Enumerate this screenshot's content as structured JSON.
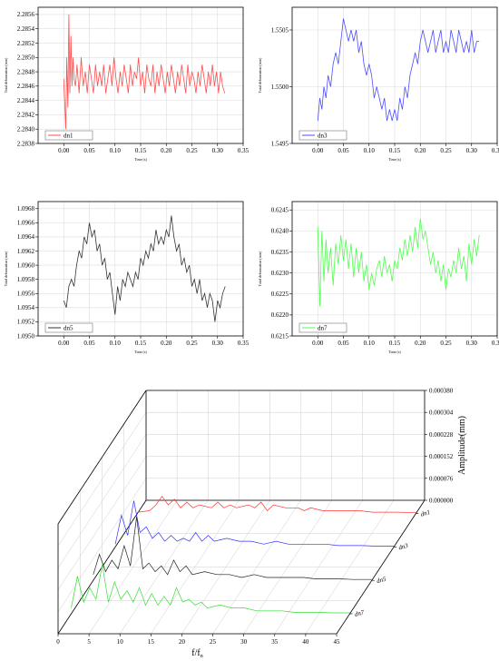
{
  "chart_data": [
    {
      "type": "line",
      "xlabel": "Time (s)",
      "ylabel": "Total deformation (mm)",
      "xticks": [
        "0.00",
        "0.05",
        "0.10",
        "0.15",
        "0.20",
        "0.25",
        "0.30",
        "0.35"
      ],
      "xlim": [
        -0.05,
        0.35
      ],
      "yticks": [
        "2.2838",
        "2.2840",
        "2.2842",
        "2.2844",
        "2.2846",
        "2.2848",
        "2.2850",
        "2.2852",
        "2.2854",
        "2.2856"
      ],
      "ylim": [
        2.2838,
        2.2857
      ],
      "grid": true,
      "legend_position": "bottom-left",
      "series": [
        {
          "name": "dn1",
          "color": "#ff4d4d",
          "x": [
            0.0,
            0.004,
            0.006,
            0.008,
            0.01,
            0.012,
            0.014,
            0.016,
            0.018,
            0.02,
            0.023,
            0.026,
            0.03,
            0.034,
            0.038,
            0.042,
            0.046,
            0.05,
            0.054,
            0.058,
            0.062,
            0.066,
            0.07,
            0.074,
            0.078,
            0.082,
            0.086,
            0.09,
            0.094,
            0.098,
            0.102,
            0.106,
            0.11,
            0.114,
            0.118,
            0.122,
            0.126,
            0.13,
            0.134,
            0.138,
            0.142,
            0.146,
            0.15,
            0.154,
            0.158,
            0.162,
            0.166,
            0.17,
            0.174,
            0.178,
            0.182,
            0.186,
            0.19,
            0.194,
            0.198,
            0.202,
            0.206,
            0.21,
            0.214,
            0.218,
            0.222,
            0.226,
            0.23,
            0.234,
            0.238,
            0.242,
            0.246,
            0.25,
            0.254,
            0.258,
            0.262,
            0.266,
            0.27,
            0.274,
            0.278,
            0.282,
            0.286,
            0.29,
            0.294,
            0.298,
            0.302,
            0.306,
            0.31,
            0.314
          ],
          "y": [
            2.2847,
            2.284,
            2.285,
            2.2843,
            2.2856,
            2.2845,
            2.2853,
            2.2846,
            2.285,
            2.2847,
            2.2846,
            2.2849,
            2.2845,
            2.285,
            2.2846,
            2.2848,
            2.2845,
            2.2849,
            2.2847,
            2.2845,
            2.2849,
            2.2846,
            2.2848,
            2.2846,
            2.2849,
            2.2845,
            2.2847,
            2.2849,
            2.2846,
            2.285,
            2.2847,
            2.2845,
            2.2848,
            2.2846,
            2.2849,
            2.2847,
            2.2845,
            2.2849,
            2.2846,
            2.2848,
            2.2847,
            2.285,
            2.2846,
            2.2848,
            2.2845,
            2.2849,
            2.2847,
            2.2846,
            2.2849,
            2.2845,
            2.2848,
            2.2846,
            2.2849,
            2.2847,
            2.2845,
            2.2848,
            2.2846,
            2.2849,
            2.2847,
            2.2845,
            2.2848,
            2.2846,
            2.2849,
            2.2847,
            2.2845,
            2.2849,
            2.2846,
            2.2848,
            2.2847,
            2.2845,
            2.2848,
            2.2846,
            2.2849,
            2.2847,
            2.2845,
            2.2848,
            2.2846,
            2.2849,
            2.2846,
            2.2848,
            2.2845,
            2.2848,
            2.2846,
            2.2845
          ]
        }
      ]
    },
    {
      "type": "line",
      "xlabel": "Time (s)",
      "ylabel": "Total deformation (mm)",
      "xticks": [
        "0.00",
        "0.05",
        "0.10",
        "0.15",
        "0.20",
        "0.25",
        "0.30",
        "0.35"
      ],
      "xlim": [
        -0.05,
        0.35
      ],
      "yticks": [
        "1.5495",
        "1.5500",
        "1.5505"
      ],
      "ylim": [
        1.5495,
        1.5507
      ],
      "grid": true,
      "legend_position": "bottom-left",
      "series": [
        {
          "name": "dn3",
          "color": "#4d4dff",
          "x": [
            0.0,
            0.004,
            0.008,
            0.012,
            0.016,
            0.02,
            0.025,
            0.03,
            0.035,
            0.04,
            0.045,
            0.05,
            0.055,
            0.06,
            0.065,
            0.07,
            0.075,
            0.08,
            0.085,
            0.09,
            0.095,
            0.1,
            0.105,
            0.11,
            0.115,
            0.12,
            0.125,
            0.13,
            0.135,
            0.14,
            0.145,
            0.15,
            0.155,
            0.16,
            0.165,
            0.17,
            0.175,
            0.18,
            0.185,
            0.19,
            0.195,
            0.2,
            0.205,
            0.21,
            0.215,
            0.22,
            0.225,
            0.23,
            0.235,
            0.24,
            0.245,
            0.25,
            0.255,
            0.26,
            0.265,
            0.27,
            0.275,
            0.28,
            0.285,
            0.29,
            0.295,
            0.3,
            0.305,
            0.31,
            0.315
          ],
          "y": [
            1.5497,
            1.5499,
            1.5498,
            1.55,
            1.5499,
            1.5501,
            1.55,
            1.5502,
            1.5503,
            1.5502,
            1.5504,
            1.5506,
            1.5505,
            1.5504,
            1.5505,
            1.5504,
            1.5505,
            1.5503,
            1.5504,
            1.5502,
            1.5501,
            1.5502,
            1.5501,
            1.5499,
            1.55,
            1.5499,
            1.5498,
            1.5499,
            1.5497,
            1.5498,
            1.5497,
            1.5498,
            1.5497,
            1.5499,
            1.5498,
            1.55,
            1.5499,
            1.5501,
            1.5502,
            1.5503,
            1.5502,
            1.5504,
            1.5505,
            1.5504,
            1.5503,
            1.5504,
            1.5505,
            1.5503,
            1.5504,
            1.5505,
            1.5503,
            1.5504,
            1.5503,
            1.5505,
            1.5504,
            1.5503,
            1.5505,
            1.5504,
            1.5503,
            1.5504,
            1.5503,
            1.5505,
            1.5503,
            1.5504,
            1.5504
          ]
        }
      ]
    },
    {
      "type": "line",
      "xlabel": "Time (s)",
      "ylabel": "Total deformation (mm)",
      "xticks": [
        "0.00",
        "0.05",
        "0.10",
        "0.15",
        "0.20",
        "0.25",
        "0.30",
        "0.35"
      ],
      "xlim": [
        -0.05,
        0.35
      ],
      "yticks": [
        "1.0950",
        "1.0952",
        "1.0954",
        "1.0956",
        "1.0958",
        "1.0960",
        "1.0962",
        "1.0964",
        "1.0966",
        "1.0968"
      ],
      "ylim": [
        1.095,
        1.0969
      ],
      "grid": true,
      "legend_position": "bottom-left",
      "series": [
        {
          "name": "dn5",
          "color": "#333333",
          "x": [
            0.0,
            0.005,
            0.01,
            0.015,
            0.02,
            0.025,
            0.03,
            0.035,
            0.04,
            0.045,
            0.05,
            0.055,
            0.06,
            0.065,
            0.07,
            0.075,
            0.08,
            0.085,
            0.09,
            0.095,
            0.1,
            0.105,
            0.11,
            0.115,
            0.12,
            0.125,
            0.13,
            0.135,
            0.14,
            0.145,
            0.15,
            0.155,
            0.16,
            0.165,
            0.17,
            0.175,
            0.18,
            0.185,
            0.19,
            0.195,
            0.2,
            0.205,
            0.21,
            0.215,
            0.22,
            0.225,
            0.23,
            0.235,
            0.24,
            0.245,
            0.25,
            0.255,
            0.26,
            0.265,
            0.27,
            0.275,
            0.28,
            0.285,
            0.29,
            0.295,
            0.3,
            0.305,
            0.31,
            0.315
          ],
          "y": [
            1.0955,
            1.0954,
            1.0957,
            1.0958,
            1.0957,
            1.096,
            1.0962,
            1.0961,
            1.0964,
            1.0963,
            1.0966,
            1.0964,
            1.0965,
            1.0962,
            1.0963,
            1.096,
            1.0961,
            1.0958,
            1.0959,
            1.0956,
            1.0953,
            1.0957,
            1.0955,
            1.0958,
            1.0957,
            1.0959,
            1.0958,
            1.0957,
            1.0959,
            1.0958,
            1.0961,
            1.096,
            1.0962,
            1.0961,
            1.0963,
            1.0962,
            1.0965,
            1.0963,
            1.0964,
            1.0963,
            1.0965,
            1.0964,
            1.0967,
            1.0964,
            1.0962,
            1.0963,
            1.096,
            1.0961,
            1.0959,
            1.096,
            1.0957,
            1.0958,
            1.0956,
            1.0958,
            1.0955,
            1.0956,
            1.0954,
            1.0956,
            1.0955,
            1.0952,
            1.0955,
            1.0954,
            1.0956,
            1.0957
          ]
        }
      ]
    },
    {
      "type": "line",
      "xlabel": "Time (s)",
      "ylabel": "Total deformation (mm)",
      "xticks": [
        "0.00",
        "0.05",
        "0.10",
        "0.15",
        "0.20",
        "0.25",
        "0.30",
        "0.35"
      ],
      "xlim": [
        -0.05,
        0.35
      ],
      "yticks": [
        "0.6215",
        "0.6220",
        "0.6225",
        "0.6230",
        "0.6235",
        "0.6240",
        "0.6245"
      ],
      "ylim": [
        0.6215,
        0.6247
      ],
      "grid": true,
      "legend_position": "bottom-left",
      "series": [
        {
          "name": "dn7",
          "color": "#4dff4d",
          "x": [
            0.0,
            0.004,
            0.008,
            0.012,
            0.016,
            0.02,
            0.025,
            0.03,
            0.035,
            0.04,
            0.045,
            0.05,
            0.055,
            0.06,
            0.065,
            0.07,
            0.075,
            0.08,
            0.085,
            0.09,
            0.095,
            0.1,
            0.105,
            0.11,
            0.115,
            0.12,
            0.125,
            0.13,
            0.135,
            0.14,
            0.145,
            0.15,
            0.155,
            0.16,
            0.165,
            0.17,
            0.175,
            0.18,
            0.185,
            0.19,
            0.195,
            0.2,
            0.205,
            0.21,
            0.215,
            0.22,
            0.225,
            0.23,
            0.235,
            0.24,
            0.245,
            0.25,
            0.255,
            0.26,
            0.265,
            0.27,
            0.275,
            0.28,
            0.285,
            0.29,
            0.295,
            0.3,
            0.305,
            0.31,
            0.315
          ],
          "y": [
            0.6241,
            0.6222,
            0.624,
            0.6228,
            0.6238,
            0.623,
            0.6236,
            0.6227,
            0.6237,
            0.6232,
            0.6239,
            0.6233,
            0.6238,
            0.6231,
            0.6237,
            0.6229,
            0.6236,
            0.623,
            0.6235,
            0.6228,
            0.6232,
            0.6226,
            0.623,
            0.6227,
            0.6231,
            0.6233,
            0.6229,
            0.6234,
            0.623,
            0.6232,
            0.6228,
            0.6233,
            0.6231,
            0.6236,
            0.6233,
            0.6238,
            0.6234,
            0.6239,
            0.6235,
            0.6241,
            0.6236,
            0.6243,
            0.6238,
            0.624,
            0.6236,
            0.6232,
            0.6235,
            0.623,
            0.6233,
            0.6228,
            0.6232,
            0.6226,
            0.6231,
            0.6229,
            0.6233,
            0.623,
            0.6236,
            0.6231,
            0.6234,
            0.6228,
            0.6237,
            0.6232,
            0.6238,
            0.6234,
            0.6239
          ]
        }
      ]
    },
    {
      "type": "line",
      "subtype": "3d-waterfall",
      "xlabel": "f/f_n",
      "xlabel_main": "f/f",
      "xlabel_sub": "n",
      "zlabel": "Amplitude(mm)",
      "xticks": [
        "0",
        "5",
        "10",
        "15",
        "20",
        "25",
        "30",
        "35",
        "40",
        "45"
      ],
      "xlim": [
        0,
        45
      ],
      "zticks": [
        "0.000000",
        "0.000076",
        "0.000152",
        "0.000228",
        "0.000304",
        "0.000380"
      ],
      "zlim": [
        0,
        0.00038
      ],
      "series_labels": [
        "dn1",
        "dn3",
        "dn5",
        "dn7"
      ],
      "series": [
        {
          "name": "dn1",
          "color": "#ff3333",
          "x": [
            0,
            2,
            3,
            4,
            5,
            6,
            7,
            8,
            9,
            10,
            12,
            13,
            14,
            15,
            16,
            18,
            19,
            20,
            21,
            22,
            24,
            26,
            27,
            28,
            30,
            32,
            34,
            36,
            38,
            40,
            42,
            45
          ],
          "y": [
            5e-06,
            1e-05,
            3e-05,
            6e-05,
            3e-05,
            5e-05,
            2e-05,
            4e-05,
            2e-05,
            3e-05,
            2e-05,
            4e-05,
            2e-05,
            3e-05,
            2e-05,
            3e-05,
            2e-05,
            4e-05,
            1e-05,
            3e-05,
            2e-05,
            2e-05,
            1e-05,
            2e-05,
            1e-05,
            1e-05,
            1e-05,
            1e-05,
            5e-06,
            5e-06,
            5e-06,
            3e-06
          ]
        },
        {
          "name": "dn3",
          "color": "#3333ff",
          "x": [
            0,
            1,
            2,
            3,
            4,
            5,
            6,
            7,
            8,
            9,
            10,
            11,
            12,
            13,
            14,
            15,
            16,
            18,
            20,
            22,
            24,
            26,
            28,
            30,
            32,
            34,
            36,
            38,
            40,
            42,
            45
          ],
          "y": [
            1e-05,
            0.00011,
            4e-05,
            0.00016,
            5e-05,
            7e-05,
            3e-05,
            5e-05,
            2e-05,
            4e-05,
            2e-05,
            3e-05,
            2e-05,
            5e-05,
            2e-05,
            4e-05,
            2e-05,
            3e-05,
            2e-05,
            2e-05,
            1e-05,
            2e-05,
            1e-05,
            1e-05,
            1e-05,
            1e-05,
            5e-06,
            5e-06,
            5e-06,
            3e-06,
            3e-06
          ]
        },
        {
          "name": "dn5",
          "color": "#222222",
          "x": [
            0,
            1,
            2,
            3,
            4,
            5,
            6,
            7,
            8,
            9,
            10,
            11,
            12,
            13,
            14,
            15,
            16,
            18,
            20,
            22,
            24,
            26,
            28,
            30,
            32,
            34,
            36,
            38,
            40,
            42,
            45
          ],
          "y": [
            2e-05,
            9e-05,
            3e-05,
            7e-05,
            4e-05,
            0.00012,
            5e-05,
            0.00022,
            4e-05,
            6e-05,
            3e-05,
            5e-05,
            2e-05,
            7e-05,
            3e-05,
            5e-05,
            2e-05,
            3e-05,
            2e-05,
            2e-05,
            1e-05,
            2e-05,
            1e-05,
            1e-05,
            1e-05,
            1e-05,
            5e-06,
            5e-06,
            5e-06,
            3e-06,
            3e-06
          ]
        },
        {
          "name": "dn7",
          "color": "#33dd33",
          "x": [
            0,
            1,
            2,
            3,
            4,
            5,
            6,
            7,
            8,
            9,
            10,
            11,
            12,
            13,
            14,
            15,
            16,
            17,
            18,
            19,
            20,
            21,
            22,
            24,
            26,
            28,
            30,
            32,
            34,
            36,
            38,
            40,
            42,
            45
          ],
          "y": [
            2e-05,
            0.00013,
            4e-05,
            9e-05,
            5e-05,
            0.00017,
            4e-05,
            0.00011,
            5e-05,
            8e-05,
            4e-05,
            9e-05,
            3e-05,
            7e-05,
            3e-05,
            6e-05,
            3e-05,
            9e-05,
            4e-05,
            5e-05,
            3e-05,
            4e-05,
            2e-05,
            3e-05,
            2e-05,
            2e-05,
            1e-05,
            1e-05,
            1e-05,
            5e-06,
            5e-06,
            5e-06,
            3e-06,
            3e-06
          ]
        }
      ]
    }
  ]
}
